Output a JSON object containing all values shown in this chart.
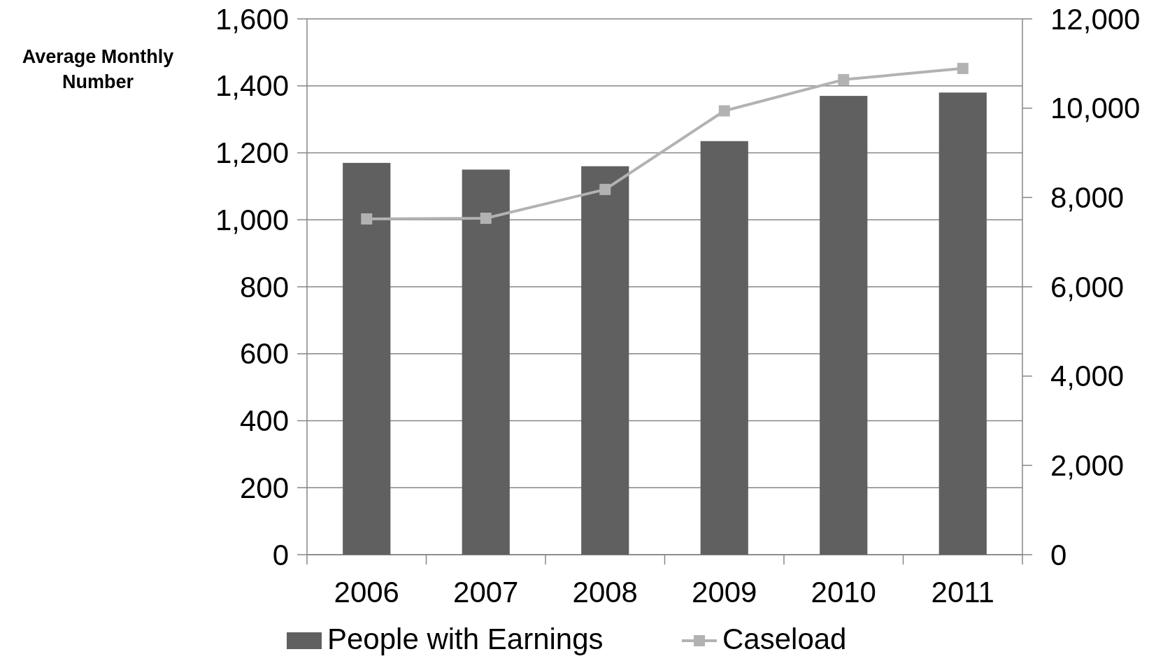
{
  "chart_data": {
    "type": "bar",
    "ylabel": "Average Monthly Number",
    "categories": [
      "2006",
      "2007",
      "2008",
      "2009",
      "2010",
      "2011"
    ],
    "series": [
      {
        "name": "People with Earnings",
        "color": "#606060",
        "values": [
          1170,
          1150,
          1160,
          1235,
          1370,
          1380
        ]
      },
      {
        "name": "Caseload",
        "type": "line",
        "axis": "y2",
        "color": "#b2b2b2",
        "marker": "square",
        "values": [
          7520,
          7535,
          8180,
          9940,
          10640,
          10890
        ]
      }
    ],
    "ylim": [
      0,
      1600
    ],
    "yticks": [
      {
        "value": 0,
        "label": "0"
      },
      {
        "value": 200,
        "label": "200"
      },
      {
        "value": 400,
        "label": "400"
      },
      {
        "value": 600,
        "label": "600"
      },
      {
        "value": 800,
        "label": "800"
      },
      {
        "value": 1000,
        "label": "1,000"
      },
      {
        "value": 1200,
        "label": "1,200"
      },
      {
        "value": 1400,
        "label": "1,400"
      },
      {
        "value": 1600,
        "label": "1,600"
      }
    ],
    "y2lim": [
      0,
      12000
    ],
    "y2ticks": [
      {
        "value": 0,
        "label": "0"
      },
      {
        "value": 2000,
        "label": "2,000"
      },
      {
        "value": 4000,
        "label": "4,000"
      },
      {
        "value": 6000,
        "label": "6,000"
      },
      {
        "value": 8000,
        "label": "8,000"
      },
      {
        "value": 10000,
        "label": "10,000"
      },
      {
        "value": 12000,
        "label": "12,000"
      }
    ],
    "grid": "y",
    "legend": "bottom"
  }
}
